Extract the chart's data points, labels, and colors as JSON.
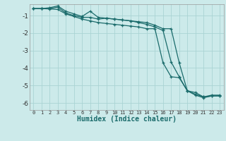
{
  "xlabel": "Humidex (Indice chaleur)",
  "bg_color": "#cceaea",
  "grid_color": "#aad4d4",
  "line_color": "#1a6b6b",
  "xlim": [
    -0.5,
    23.5
  ],
  "ylim": [
    -6.4,
    -0.35
  ],
  "yticks": [
    -6,
    -5,
    -4,
    -3,
    -2,
    -1
  ],
  "xticks": [
    0,
    1,
    2,
    3,
    4,
    5,
    6,
    7,
    8,
    9,
    10,
    11,
    12,
    13,
    14,
    15,
    16,
    17,
    18,
    19,
    20,
    21,
    22,
    23
  ],
  "line1_x": [
    0,
    1,
    2,
    3,
    4,
    5,
    6,
    7,
    8,
    9,
    10,
    11,
    12,
    13,
    14,
    15,
    16,
    17,
    18,
    19,
    20,
    21,
    22,
    23
  ],
  "line1_y": [
    -0.6,
    -0.6,
    -0.55,
    -0.45,
    -0.75,
    -0.9,
    -1.05,
    -0.75,
    -1.1,
    -1.15,
    -1.2,
    -1.25,
    -1.3,
    -1.35,
    -1.4,
    -1.55,
    -1.75,
    -1.75,
    -3.7,
    -5.3,
    -5.4,
    -5.65,
    -5.55,
    -5.55
  ],
  "line2_x": [
    0,
    1,
    2,
    3,
    4,
    5,
    6,
    7,
    8,
    9,
    10,
    11,
    12,
    13,
    14,
    15,
    16,
    17,
    18,
    19,
    20,
    21,
    22,
    23
  ],
  "line2_y": [
    -0.6,
    -0.6,
    -0.62,
    -0.65,
    -0.9,
    -1.05,
    -1.2,
    -1.3,
    -1.4,
    -1.45,
    -1.5,
    -1.55,
    -1.6,
    -1.65,
    -1.75,
    -1.75,
    -3.7,
    -4.5,
    -4.55,
    -5.3,
    -5.55,
    -5.7,
    -5.6,
    -5.6
  ],
  "line3_x": [
    0,
    1,
    2,
    3,
    4,
    5,
    6,
    7,
    8,
    9,
    10,
    11,
    12,
    13,
    14,
    15,
    16,
    17,
    18,
    19,
    20,
    21,
    22,
    23
  ],
  "line3_y": [
    -0.6,
    -0.6,
    -0.6,
    -0.52,
    -0.85,
    -1.0,
    -1.1,
    -1.1,
    -1.2,
    -1.15,
    -1.2,
    -1.25,
    -1.3,
    -1.4,
    -1.5,
    -1.65,
    -1.85,
    -3.65,
    -4.5,
    -5.3,
    -5.5,
    -5.65,
    -5.6,
    -5.58
  ]
}
